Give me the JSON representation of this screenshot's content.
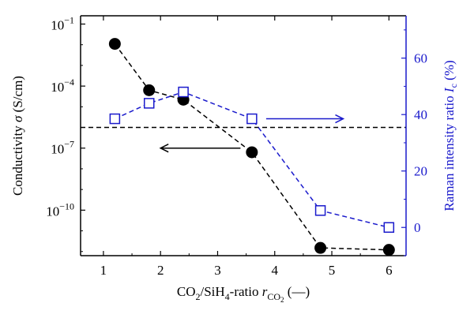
{
  "chart_data": {
    "type": "scatter",
    "x_axis": {
      "range": [
        0.6,
        6.3
      ],
      "ticks": [
        1,
        2,
        3,
        4,
        5,
        6
      ],
      "tick_labels": [
        "1",
        "2",
        "3",
        "4",
        "5",
        "6"
      ]
    },
    "y_left": {
      "scale": "log",
      "range_log10": [
        -12.2,
        -0.6
      ],
      "ticks_log10": [
        -1,
        -4,
        -7,
        -10
      ],
      "tick_labels": [
        {
          "base": "10",
          "exp": "−1"
        },
        {
          "base": "10",
          "exp": "−4"
        },
        {
          "base": "10",
          "exp": "−7"
        },
        {
          "base": "10",
          "exp": "−10"
        }
      ],
      "title_parts": [
        "Conductivity ",
        "σ",
        " (S/cm)"
      ],
      "color": "#000000"
    },
    "y_right": {
      "scale": "linear",
      "range": [
        -10,
        75
      ],
      "ticks": [
        0,
        20,
        40,
        60
      ],
      "tick_labels": [
        "0",
        "20",
        "40",
        "60"
      ],
      "title_parts": [
        "Raman intensity ratio ",
        "I",
        "c",
        " (%)"
      ],
      "color": "#1a1acc"
    },
    "x_title": {
      "main": "CO",
      "sub1": "2",
      "mid": "/SiH",
      "sub2": "4",
      "tail": "-ratio ",
      "r": "r",
      "rsub": "CO",
      "rsubsub": "2",
      "unit": " (—)"
    },
    "series": [
      {
        "axis": "left",
        "marker": "filled-circle",
        "color": "#000000",
        "line": "dashed",
        "x": [
          1.2,
          1.8,
          2.4,
          3.6,
          4.8,
          6.0
        ],
        "y": [
          0.011,
          6.3e-05,
          2.2e-05,
          6.3e-08,
          1.5e-12,
          1.2e-12
        ]
      },
      {
        "axis": "right",
        "marker": "open-square",
        "color": "#1a1acc",
        "line": "dashed",
        "x": [
          1.2,
          1.8,
          2.4,
          3.6,
          4.8,
          6.0
        ],
        "y": [
          38.5,
          44,
          48,
          38.5,
          6,
          0
        ]
      }
    ],
    "annotations": {
      "threshold_log10": -6.0,
      "left_arrow": {
        "from_x": 3.4,
        "to_x": 2.0,
        "log10_y": -7.0
      },
      "right_arrow": {
        "from_x": 3.85,
        "to_x": 5.2,
        "y_right": 38.5
      }
    }
  }
}
